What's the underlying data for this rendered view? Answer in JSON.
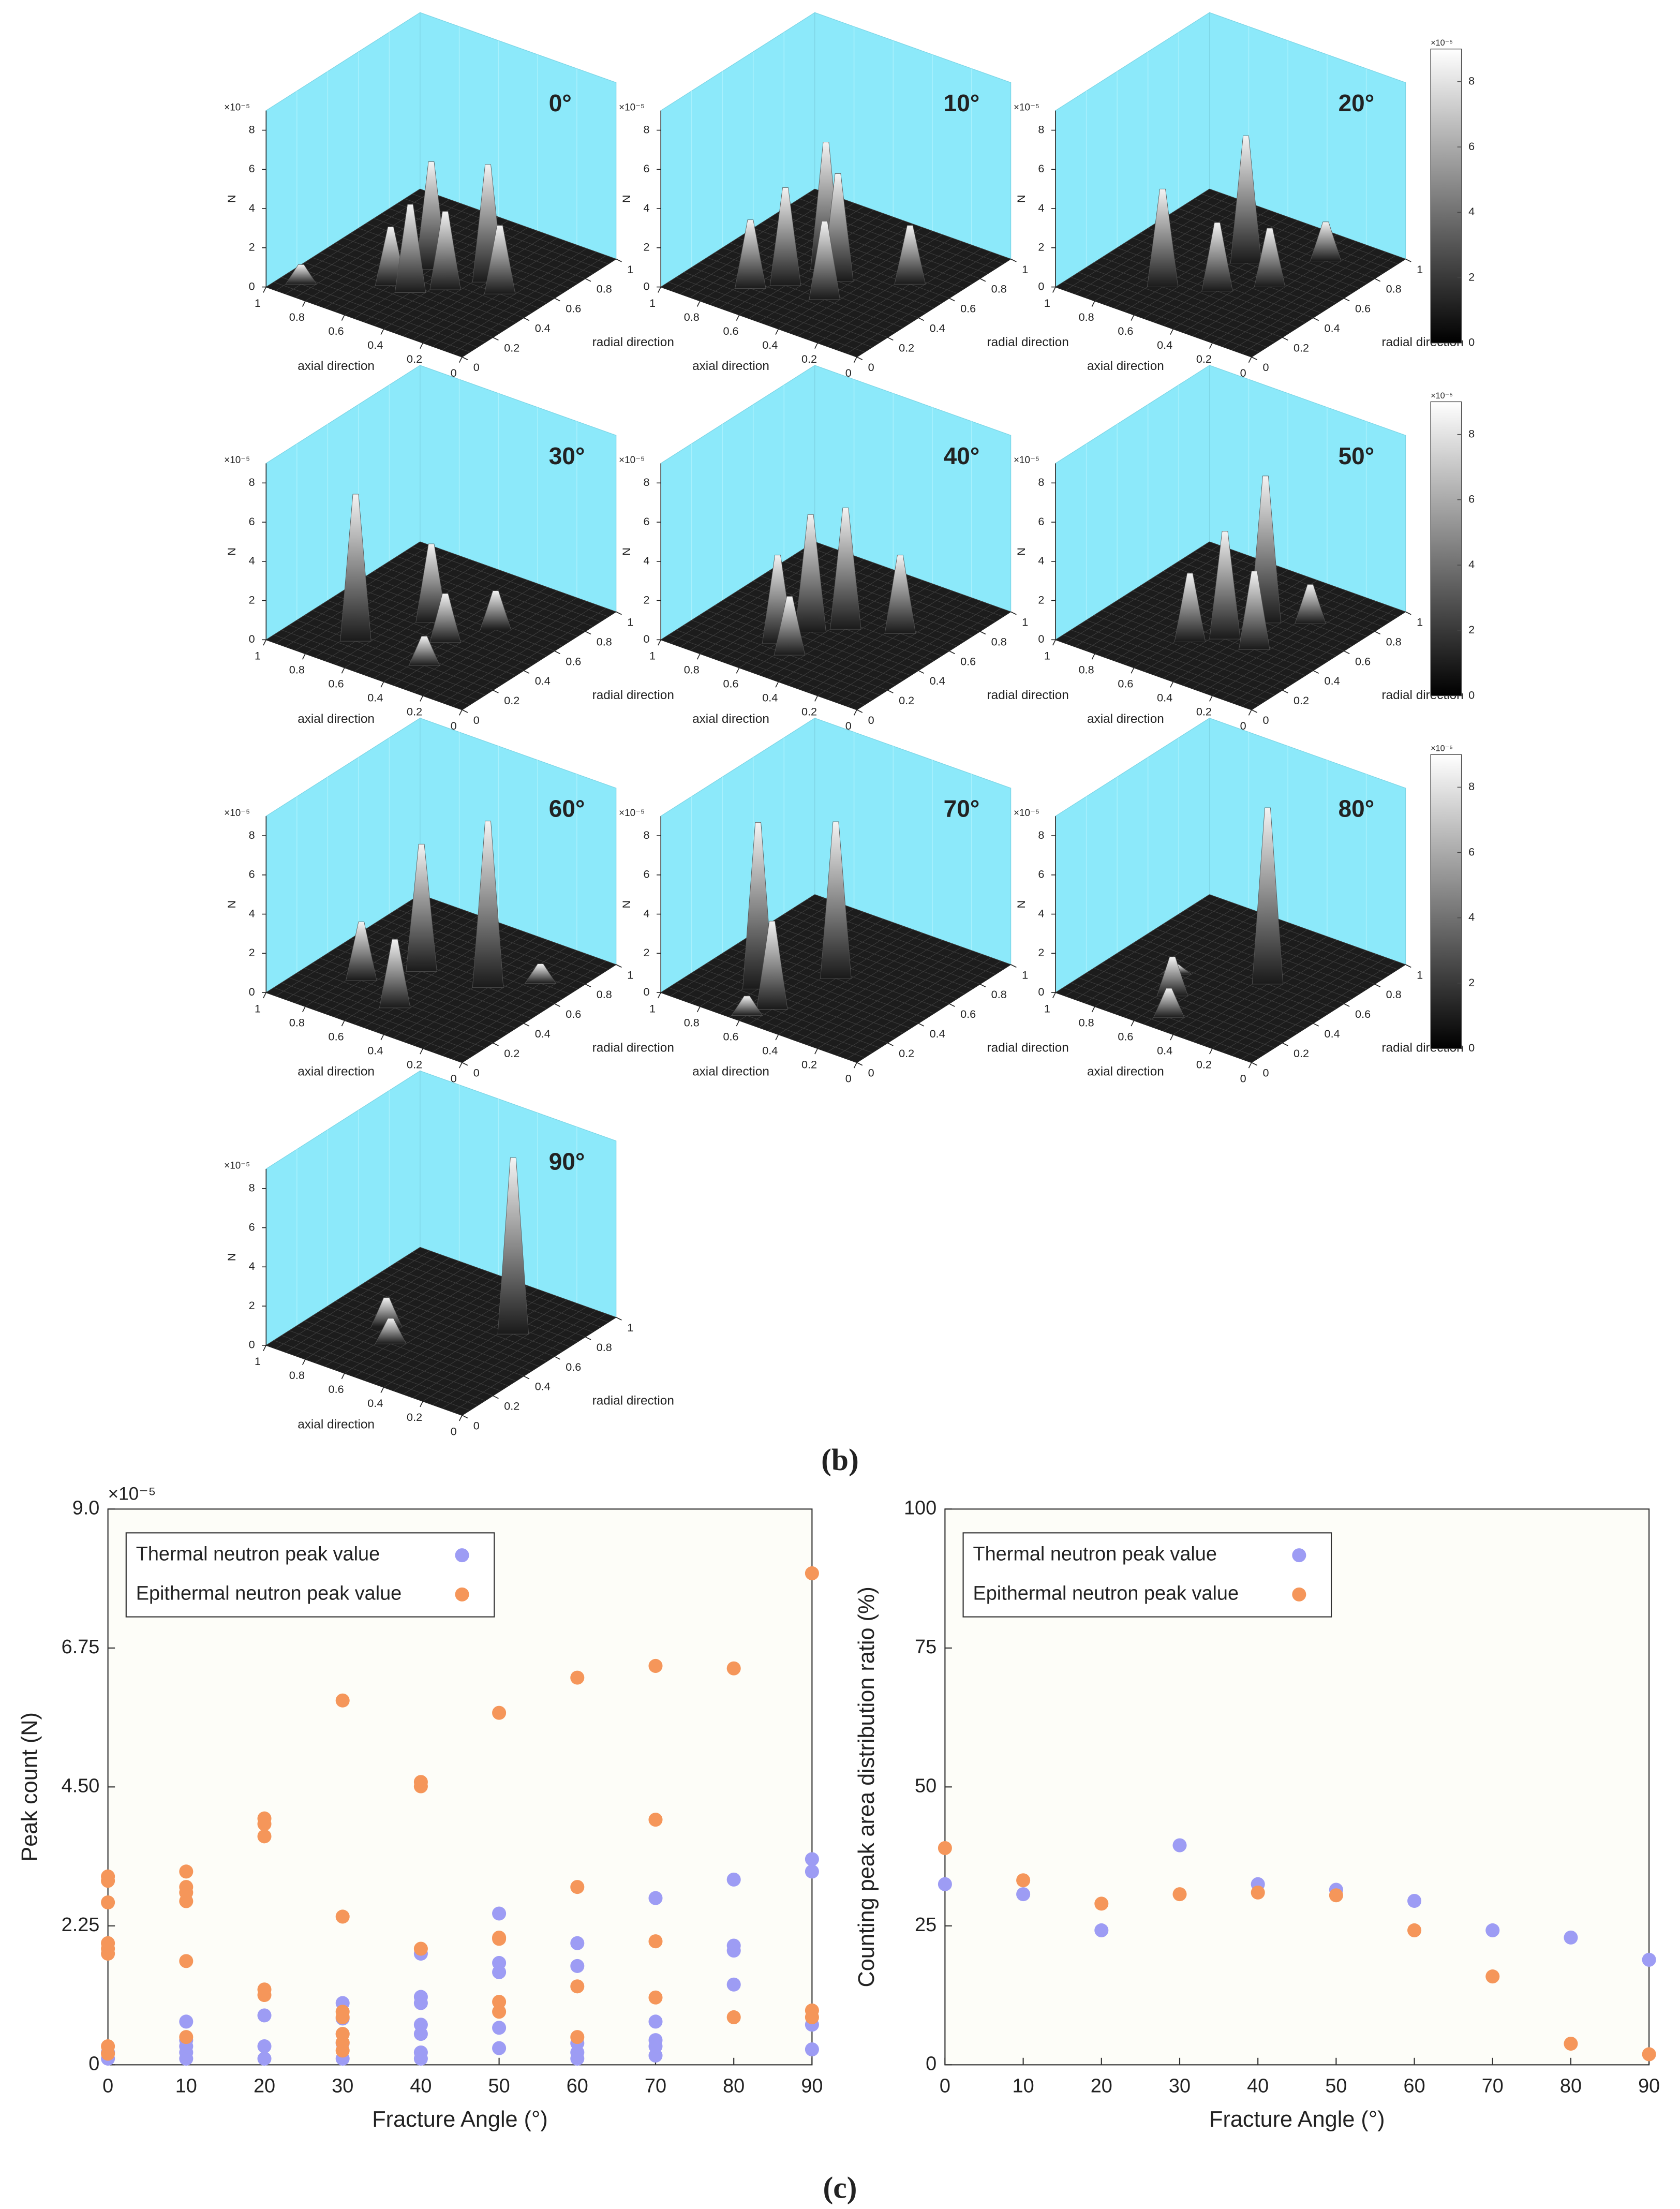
{
  "captions": [
    "(b)",
    "(c)"
  ],
  "chart_data": [
    {
      "type": "surface3d",
      "title": "0°",
      "xlabel": "axial direction",
      "ylabel": "radial direction",
      "zlabel": "N",
      "exponent": "×10⁻⁵",
      "xlim": [
        0,
        1
      ],
      "xticks": [
        0,
        0.2,
        0.4,
        0.6,
        0.8,
        1
      ],
      "ylim": [
        0,
        1
      ],
      "yticks": [
        0,
        0.2,
        0.4,
        0.6,
        0.8,
        1
      ],
      "zlim": [
        0,
        9
      ],
      "zticks": [
        0,
        2,
        4,
        6,
        8
      ],
      "peaks": [
        {
          "axial": 0.9,
          "radial": 0.1,
          "N": 1
        },
        {
          "axial": 0.6,
          "radial": 0.3,
          "N": 3
        },
        {
          "axial": 0.55,
          "radial": 0.5,
          "N": 5.5
        },
        {
          "axial": 0.5,
          "radial": 0.3,
          "N": 4.5
        },
        {
          "axial": 0.4,
          "radial": 0.4,
          "N": 4
        },
        {
          "axial": 0.3,
          "radial": 0.55,
          "N": 6
        },
        {
          "axial": 0.2,
          "radial": 0.5,
          "N": 3.5
        }
      ]
    },
    {
      "type": "surface3d",
      "title": "10°",
      "xlabel": "axial direction",
      "ylabel": "radial direction",
      "zlabel": "N",
      "exponent": "×10⁻⁵",
      "xlim": [
        0,
        1
      ],
      "xticks": [
        0,
        0.2,
        0.4,
        0.6,
        0.8,
        1
      ],
      "ylim": [
        0,
        1
      ],
      "yticks": [
        0,
        0.2,
        0.4,
        0.6,
        0.8,
        1
      ],
      "zlim": [
        0,
        9
      ],
      "zticks": [
        0,
        2,
        4,
        6,
        8
      ],
      "peaks": [
        {
          "axial": 0.7,
          "radial": 0.2,
          "N": 3.5
        },
        {
          "axial": 0.55,
          "radial": 0.5,
          "N": 6.5
        },
        {
          "axial": 0.6,
          "radial": 0.3,
          "N": 5
        },
        {
          "axial": 0.45,
          "radial": 0.45,
          "N": 5.5
        },
        {
          "axial": 0.4,
          "radial": 0.3,
          "N": 4
        },
        {
          "axial": 0.2,
          "radial": 0.6,
          "N": 3
        }
      ]
    },
    {
      "type": "surface3d",
      "title": "20°",
      "xlabel": "axial direction",
      "ylabel": "radial direction",
      "zlabel": "N",
      "exponent": "×10⁻⁵",
      "xlim": [
        0,
        1
      ],
      "xticks": [
        0,
        0.2,
        0.4,
        0.6,
        0.8,
        1
      ],
      "ylim": [
        0,
        1
      ],
      "yticks": [
        0,
        0.2,
        0.4,
        0.6,
        0.8,
        1
      ],
      "zlim": [
        0,
        9
      ],
      "zticks": [
        0,
        2,
        4,
        6,
        8
      ],
      "peaks": [
        {
          "axial": 0.65,
          "radial": 0.25,
          "N": 5
        },
        {
          "axial": 0.5,
          "radial": 0.6,
          "N": 6.5
        },
        {
          "axial": 0.45,
          "radial": 0.35,
          "N": 3.5
        },
        {
          "axial": 0.3,
          "radial": 0.5,
          "N": 3
        },
        {
          "axial": 0.25,
          "radial": 0.8,
          "N": 2
        }
      ],
      "colorbar": {
        "clim": [
          0,
          9
        ],
        "ticks": [
          0,
          2,
          4,
          6,
          8
        ]
      }
    },
    {
      "type": "surface3d",
      "title": "30°",
      "xlabel": "axial direction",
      "ylabel": "radial direction",
      "zlabel": "N",
      "exponent": "×10⁻⁵",
      "xlim": [
        0,
        1
      ],
      "xticks": [
        0,
        0.2,
        0.4,
        0.6,
        0.8,
        1
      ],
      "ylim": [
        0,
        1
      ],
      "yticks": [
        0,
        0.2,
        0.4,
        0.6,
        0.8,
        1
      ],
      "zlim": [
        0,
        9
      ],
      "zticks": [
        0,
        2,
        4,
        6,
        8
      ],
      "peaks": [
        {
          "axial": 0.7,
          "radial": 0.2,
          "N": 7.5
        },
        {
          "axial": 0.55,
          "radial": 0.5,
          "N": 4
        },
        {
          "axial": 0.4,
          "radial": 0.4,
          "N": 2.5
        },
        {
          "axial": 0.35,
          "radial": 0.2,
          "N": 1.5
        },
        {
          "axial": 0.3,
          "radial": 0.6,
          "N": 2
        }
      ]
    },
    {
      "type": "surface3d",
      "title": "40°",
      "xlabel": "axial direction",
      "ylabel": "radial direction",
      "zlabel": "N",
      "exponent": "×10⁻⁵",
      "xlim": [
        0,
        1
      ],
      "xticks": [
        0,
        0.2,
        0.4,
        0.6,
        0.8,
        1
      ],
      "ylim": [
        0,
        1
      ],
      "yticks": [
        0,
        0.2,
        0.4,
        0.6,
        0.8,
        1
      ],
      "zlim": [
        0,
        9
      ],
      "zticks": [
        0,
        2,
        4,
        6,
        8
      ],
      "peaks": [
        {
          "axial": 0.6,
          "radial": 0.25,
          "N": 4.5
        },
        {
          "axial": 0.55,
          "radial": 0.4,
          "N": 6
        },
        {
          "axial": 0.45,
          "radial": 0.5,
          "N": 6.2
        },
        {
          "axial": 0.5,
          "radial": 0.2,
          "N": 3
        },
        {
          "axial": 0.25,
          "radial": 0.6,
          "N": 4
        }
      ]
    },
    {
      "type": "surface3d",
      "title": "50°",
      "xlabel": "axial direction",
      "ylabel": "radial direction",
      "zlabel": "N",
      "exponent": "×10⁻⁵",
      "xlim": [
        0,
        1
      ],
      "xticks": [
        0,
        0.2,
        0.4,
        0.6,
        0.8,
        1
      ],
      "ylim": [
        0,
        1
      ],
      "yticks": [
        0,
        0.2,
        0.4,
        0.6,
        0.8,
        1
      ],
      "zlim": [
        0,
        9
      ],
      "zticks": [
        0,
        2,
        4,
        6,
        8
      ],
      "peaks": [
        {
          "axial": 0.55,
          "radial": 0.3,
          "N": 3.5
        },
        {
          "axial": 0.45,
          "radial": 0.4,
          "N": 5.5
        },
        {
          "axial": 0.4,
          "radial": 0.6,
          "N": 7.5
        },
        {
          "axial": 0.3,
          "radial": 0.4,
          "N": 4
        },
        {
          "axial": 0.25,
          "radial": 0.7,
          "N": 2
        }
      ],
      "colorbar": {
        "clim": [
          0,
          9
        ],
        "ticks": [
          0,
          2,
          4,
          6,
          8
        ]
      }
    },
    {
      "type": "surface3d",
      "title": "60°",
      "xlabel": "axial direction",
      "ylabel": "radial direction",
      "zlabel": "N",
      "exponent": "×10⁻⁵",
      "xlim": [
        0,
        1
      ],
      "xticks": [
        0,
        0.2,
        0.4,
        0.6,
        0.8,
        1
      ],
      "ylim": [
        0,
        1
      ],
      "yticks": [
        0,
        0.2,
        0.4,
        0.6,
        0.8,
        1
      ],
      "zlim": [
        0,
        9
      ],
      "zticks": [
        0,
        2,
        4,
        6,
        8
      ],
      "peaks": [
        {
          "axial": 0.75,
          "radial": 0.3,
          "N": 3
        },
        {
          "axial": 0.6,
          "radial": 0.5,
          "N": 6.5
        },
        {
          "axial": 0.5,
          "radial": 0.2,
          "N": 3.5
        },
        {
          "axial": 0.3,
          "radial": 0.55,
          "N": 8.5
        },
        {
          "axial": 0.15,
          "radial": 0.7,
          "N": 1
        }
      ]
    },
    {
      "type": "surface3d",
      "title": "70°",
      "xlabel": "axial direction",
      "ylabel": "radial direction",
      "zlabel": "N",
      "exponent": "×10⁻⁵",
      "xlim": [
        0,
        1
      ],
      "xticks": [
        0,
        0.2,
        0.4,
        0.6,
        0.8,
        1
      ],
      "ylim": [
        0,
        1
      ],
      "yticks": [
        0,
        0.2,
        0.4,
        0.6,
        0.8,
        1
      ],
      "zlim": [
        0,
        9
      ],
      "zticks": [
        0,
        2,
        4,
        6,
        8
      ],
      "peaks": [
        {
          "axial": 0.7,
          "radial": 0.25,
          "N": 8.5
        },
        {
          "axial": 0.5,
          "radial": 0.5,
          "N": 8
        },
        {
          "axial": 0.55,
          "radial": 0.15,
          "N": 4.5
        },
        {
          "axial": 0.6,
          "radial": 0.05,
          "N": 1
        }
      ]
    },
    {
      "type": "surface3d",
      "title": "80°",
      "xlabel": "axial direction",
      "ylabel": "radial direction",
      "zlabel": "N",
      "exponent": "×10⁻⁵",
      "xlim": [
        0,
        1
      ],
      "xticks": [
        0,
        0.2,
        0.4,
        0.6,
        0.8,
        1
      ],
      "ylim": [
        0,
        1
      ],
      "yticks": [
        0,
        0.2,
        0.4,
        0.6,
        0.8,
        1
      ],
      "zlim": [
        0,
        9
      ],
      "zticks": [
        0,
        2,
        4,
        6,
        8
      ],
      "peaks": [
        {
          "axial": 0.35,
          "radial": 0.55,
          "N": 9
        },
        {
          "axial": 0.7,
          "radial": 0.4,
          "N": 0.5
        },
        {
          "axial": 0.6,
          "radial": 0.25,
          "N": 2
        },
        {
          "axial": 0.5,
          "radial": 0.1,
          "N": 1.5
        }
      ],
      "colorbar": {
        "clim": [
          0,
          9
        ],
        "ticks": [
          0,
          2,
          4,
          6,
          8
        ]
      }
    },
    {
      "type": "surface3d",
      "title": "90°",
      "xlabel": "axial direction",
      "ylabel": "radial direction",
      "zlabel": "N",
      "exponent": "×10⁻⁵",
      "xlim": [
        0,
        1
      ],
      "xticks": [
        0,
        0.2,
        0.4,
        0.6,
        0.8,
        1
      ],
      "ylim": [
        0,
        1
      ],
      "yticks": [
        0,
        0.2,
        0.4,
        0.6,
        0.8,
        1
      ],
      "zlim": [
        0,
        9
      ],
      "zticks": [
        0,
        2,
        4,
        6,
        8
      ],
      "peaks": [
        {
          "axial": 0.7,
          "radial": 0.4,
          "N": 1.5
        },
        {
          "axial": 0.6,
          "radial": 0.3,
          "N": 1.3
        },
        {
          "axial": 0.25,
          "radial": 0.65,
          "N": 9
        }
      ]
    },
    {
      "type": "scatter",
      "xlabel": "Fracture Angle (°)",
      "ylabel": "Peak count (N)",
      "exponent": "×10⁻⁵",
      "xlim": [
        0,
        90
      ],
      "xticks": [
        0,
        10,
        20,
        30,
        40,
        50,
        60,
        70,
        80,
        90
      ],
      "ylim": [
        0,
        9
      ],
      "yticks": [
        0,
        2.25,
        {
          "value": 4.5,
          "label": "4.50"
        },
        6.75,
        {
          "value": 9,
          "label": "9.0"
        }
      ],
      "series": [
        {
          "name": "Thermal neutron peak value",
          "color": "#9d9cf4",
          "x": [
            0,
            0,
            10,
            10,
            10,
            10,
            10,
            20,
            20,
            20,
            30,
            30,
            30,
            30,
            30,
            40,
            40,
            40,
            40,
            40,
            40,
            40,
            50,
            50,
            50,
            50,
            50,
            60,
            60,
            60,
            60,
            60,
            70,
            70,
            70,
            70,
            70,
            80,
            80,
            80,
            80,
            90,
            90,
            90,
            90
          ],
          "values": [
            0.1,
            0.2,
            0.7,
            0.4,
            0.3,
            0.2,
            0.1,
            0.8,
            0.3,
            0.1,
            1.0,
            0.75,
            0.5,
            0.35,
            0.1,
            1.8,
            1.1,
            1.0,
            0.65,
            0.5,
            0.2,
            0.1,
            2.45,
            1.65,
            1.5,
            0.6,
            0.27,
            1.97,
            1.6,
            0.35,
            0.2,
            0.1,
            2.7,
            0.7,
            0.4,
            0.3,
            0.15,
            3.0,
            1.93,
            1.85,
            1.3,
            3.33,
            3.13,
            0.65,
            0.25
          ]
        },
        {
          "name": "Epithermal neutron peak value",
          "color": "#f5965a",
          "x": [
            0,
            0,
            0,
            0,
            0,
            0,
            0,
            0,
            10,
            10,
            10,
            10,
            10,
            10,
            20,
            20,
            20,
            20,
            20,
            30,
            30,
            30,
            30,
            30,
            30,
            30,
            40,
            40,
            40,
            50,
            50,
            50,
            50,
            50,
            60,
            60,
            60,
            60,
            70,
            70,
            70,
            70,
            80,
            80,
            90,
            90,
            90
          ],
          "values": [
            3.05,
            2.98,
            2.63,
            1.97,
            1.88,
            1.8,
            0.3,
            0.18,
            3.13,
            2.88,
            2.79,
            2.65,
            1.68,
            0.45,
            3.99,
            3.9,
            3.7,
            1.22,
            1.13,
            5.9,
            2.4,
            0.86,
            0.77,
            0.5,
            0.36,
            0.23,
            4.58,
            4.51,
            1.88,
            5.7,
            2.06,
            2.04,
            1.02,
            0.86,
            6.27,
            2.88,
            1.27,
            0.45,
            6.46,
            3.97,
            2.0,
            1.09,
            6.42,
            0.77,
            7.96,
            0.88,
            0.77
          ]
        }
      ]
    },
    {
      "type": "scatter",
      "xlabel": "Fracture Angle (°)",
      "ylabel": "Counting peak area distribution ratio (%)",
      "xlim": [
        0,
        90
      ],
      "xticks": [
        0,
        10,
        20,
        30,
        40,
        50,
        60,
        70,
        80,
        90
      ],
      "ylim": [
        0,
        100
      ],
      "yticks": [
        0,
        25,
        50,
        75,
        100
      ],
      "series": [
        {
          "name": "Thermal neutron peak value",
          "color": "#9d9cf4",
          "x": [
            0,
            10,
            20,
            30,
            40,
            50,
            60,
            70,
            80,
            90
          ],
          "values": [
            32.5,
            30.7,
            24.2,
            39.5,
            32.5,
            31.5,
            29.5,
            24.2,
            22.9,
            18.9
          ]
        },
        {
          "name": "Epithermal neutron peak value",
          "color": "#f5965a",
          "x": [
            0,
            10,
            20,
            30,
            40,
            50,
            60,
            70,
            80,
            90
          ],
          "values": [
            39,
            33.2,
            29,
            30.7,
            31,
            30.5,
            24.2,
            15.9,
            3.8,
            1.9
          ]
        }
      ]
    }
  ]
}
